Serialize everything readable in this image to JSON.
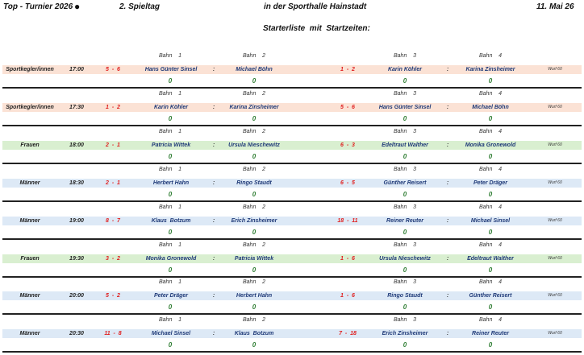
{
  "header": {
    "title": "Top - Turnier 2026",
    "round": "2. Spieltag",
    "venue": "in der Sporthalle Hainstadt",
    "date": "11. Mai 26",
    "subtitle": "Starterliste  mit  Startzeiten:"
  },
  "lane_labels": [
    "Bahn    1",
    "Bahn    2",
    "Bahn    3",
    "Bahn    4"
  ],
  "colors": {
    "Sportkegler/innen": "#fbe2d5",
    "Frauen": "#d9efd0",
    "Männer": "#dde9f6"
  },
  "matches": [
    {
      "category": "Sportkegler/innen",
      "time": "17:00",
      "score1": "5  -  6",
      "p1": "Hans Günter Sinsel",
      "p2": "Michael Böhn",
      "score2": "1  -  2",
      "p3": "Karin Köhler",
      "p4": "Karina Zinsheimer",
      "wurf": "Wurf 60",
      "results": [
        "0",
        "0",
        "0",
        "0"
      ]
    },
    {
      "category": "Sportkegler/innen",
      "time": "17:30",
      "score1": "1  -  2",
      "p1": "Karin Köhler",
      "p2": "Karina Zinsheimer",
      "score2": "5  -  6",
      "p3": "Hans Günter Sinsel",
      "p4": "Michael Böhn",
      "wurf": "Wurf 60",
      "results": [
        "0",
        "0",
        "0",
        "0"
      ]
    },
    {
      "category": "Frauen",
      "time": "18:00",
      "score1": "2  -  1",
      "p1": "Patricia Wittek",
      "p2": "Ursula Nieschewitz",
      "score2": "6  -  3",
      "p3": "Edeltraut Walther",
      "p4": "Monika Gronewold",
      "wurf": "Wurf 60",
      "results": [
        "0",
        "0",
        "0",
        "0"
      ]
    },
    {
      "category": "Männer",
      "time": "18:30",
      "score1": "2  -  1",
      "p1": "Herbert Hahn",
      "p2": "Ringo Staudt",
      "score2": "6  -  5",
      "p3": "Günther Reisert",
      "p4": "Peter Dräger",
      "wurf": "Wurf 60",
      "results": [
        "0",
        "0",
        "0",
        "0"
      ]
    },
    {
      "category": "Männer",
      "time": "19:00",
      "score1": "8  -  7",
      "p1": "Klaus  Botzum",
      "p2": "Erich Zinsheimer",
      "score2": "18  -  11",
      "p3": "Reiner Reuter",
      "p4": "Michael Sinsel",
      "wurf": "Wurf 60",
      "results": [
        "0",
        "0",
        "0",
        "0"
      ]
    },
    {
      "category": "Frauen",
      "time": "19:30",
      "score1": "3  -  2",
      "p1": "Monika Gronewold",
      "p2": "Patricia Wittek",
      "score2": "1  -  6",
      "p3": "Ursula Nieschewitz",
      "p4": "Edeltraut Walther",
      "wurf": "Wurf 60",
      "results": [
        "0",
        "0",
        "0",
        "0"
      ]
    },
    {
      "category": "Männer",
      "time": "20:00",
      "score1": "5  -  2",
      "p1": "Peter Dräger",
      "p2": "Herbert Hahn",
      "score2": "1  -  6",
      "p3": "Ringo Staudt",
      "p4": "Günther Reisert",
      "wurf": "Wurf 60",
      "results": [
        "0",
        "0",
        "0",
        "0"
      ]
    },
    {
      "category": "Männer",
      "time": "20:30",
      "score1": "11  -  8",
      "p1": "Michael Sinsel",
      "p2": "Klaus  Botzum",
      "score2": "7  -  18",
      "p3": "Erich Zinsheimer",
      "p4": "Reiner Reuter",
      "wurf": "Wurf 60",
      "results": [
        "0",
        "0",
        "0",
        "0"
      ]
    }
  ],
  "separator": ":"
}
